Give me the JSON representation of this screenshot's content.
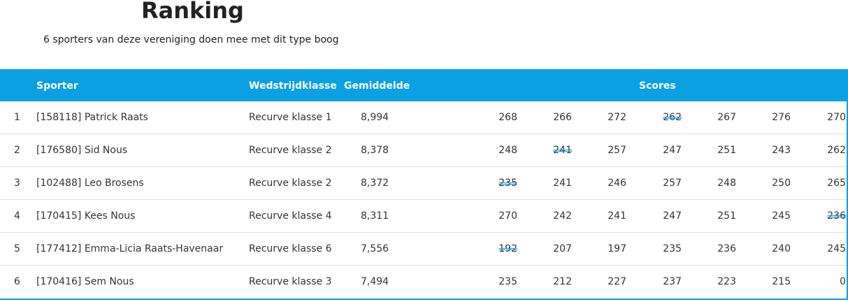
{
  "title": "Ranking",
  "subtitle": "6 sporters van deze vereniging doen mee met dit type boog",
  "headers": {
    "sporter": "Sporter",
    "klasse": "Wedstrijdklasse",
    "gemiddelde": "Gemiddelde",
    "scores": "Scores"
  },
  "accent": "#0ba0e2",
  "rows": [
    {
      "rank": "1",
      "name": "[158118] Patrick Raats",
      "klasse": "Recurve klasse 1",
      "avg": "8,994",
      "scores": [
        "268",
        "266",
        "272",
        "262",
        "267",
        "276",
        "270"
      ],
      "struck": [
        3
      ]
    },
    {
      "rank": "2",
      "name": "[176580] Sid Nous",
      "klasse": "Recurve klasse 2",
      "avg": "8,378",
      "scores": [
        "248",
        "241",
        "257",
        "247",
        "251",
        "243",
        "262"
      ],
      "struck": [
        1
      ]
    },
    {
      "rank": "3",
      "name": "[102488] Leo Brosens",
      "klasse": "Recurve klasse 2",
      "avg": "8,372",
      "scores": [
        "235",
        "241",
        "246",
        "257",
        "248",
        "250",
        "265"
      ],
      "struck": [
        0
      ]
    },
    {
      "rank": "4",
      "name": "[170415] Kees Nous",
      "klasse": "Recurve klasse 4",
      "avg": "8,311",
      "scores": [
        "270",
        "242",
        "241",
        "247",
        "251",
        "245",
        "236"
      ],
      "struck": [
        6
      ]
    },
    {
      "rank": "5",
      "name": "[177412] Emma-Licia Raats-Havenaar",
      "klasse": "Recurve klasse 6",
      "avg": "7,556",
      "scores": [
        "192",
        "207",
        "197",
        "235",
        "236",
        "240",
        "245"
      ],
      "struck": [
        0
      ]
    },
    {
      "rank": "6",
      "name": "[170416] Sem Nous",
      "klasse": "Recurve klasse 3",
      "avg": "7,494",
      "scores": [
        "235",
        "212",
        "227",
        "237",
        "223",
        "215",
        "0"
      ],
      "struck": []
    }
  ]
}
